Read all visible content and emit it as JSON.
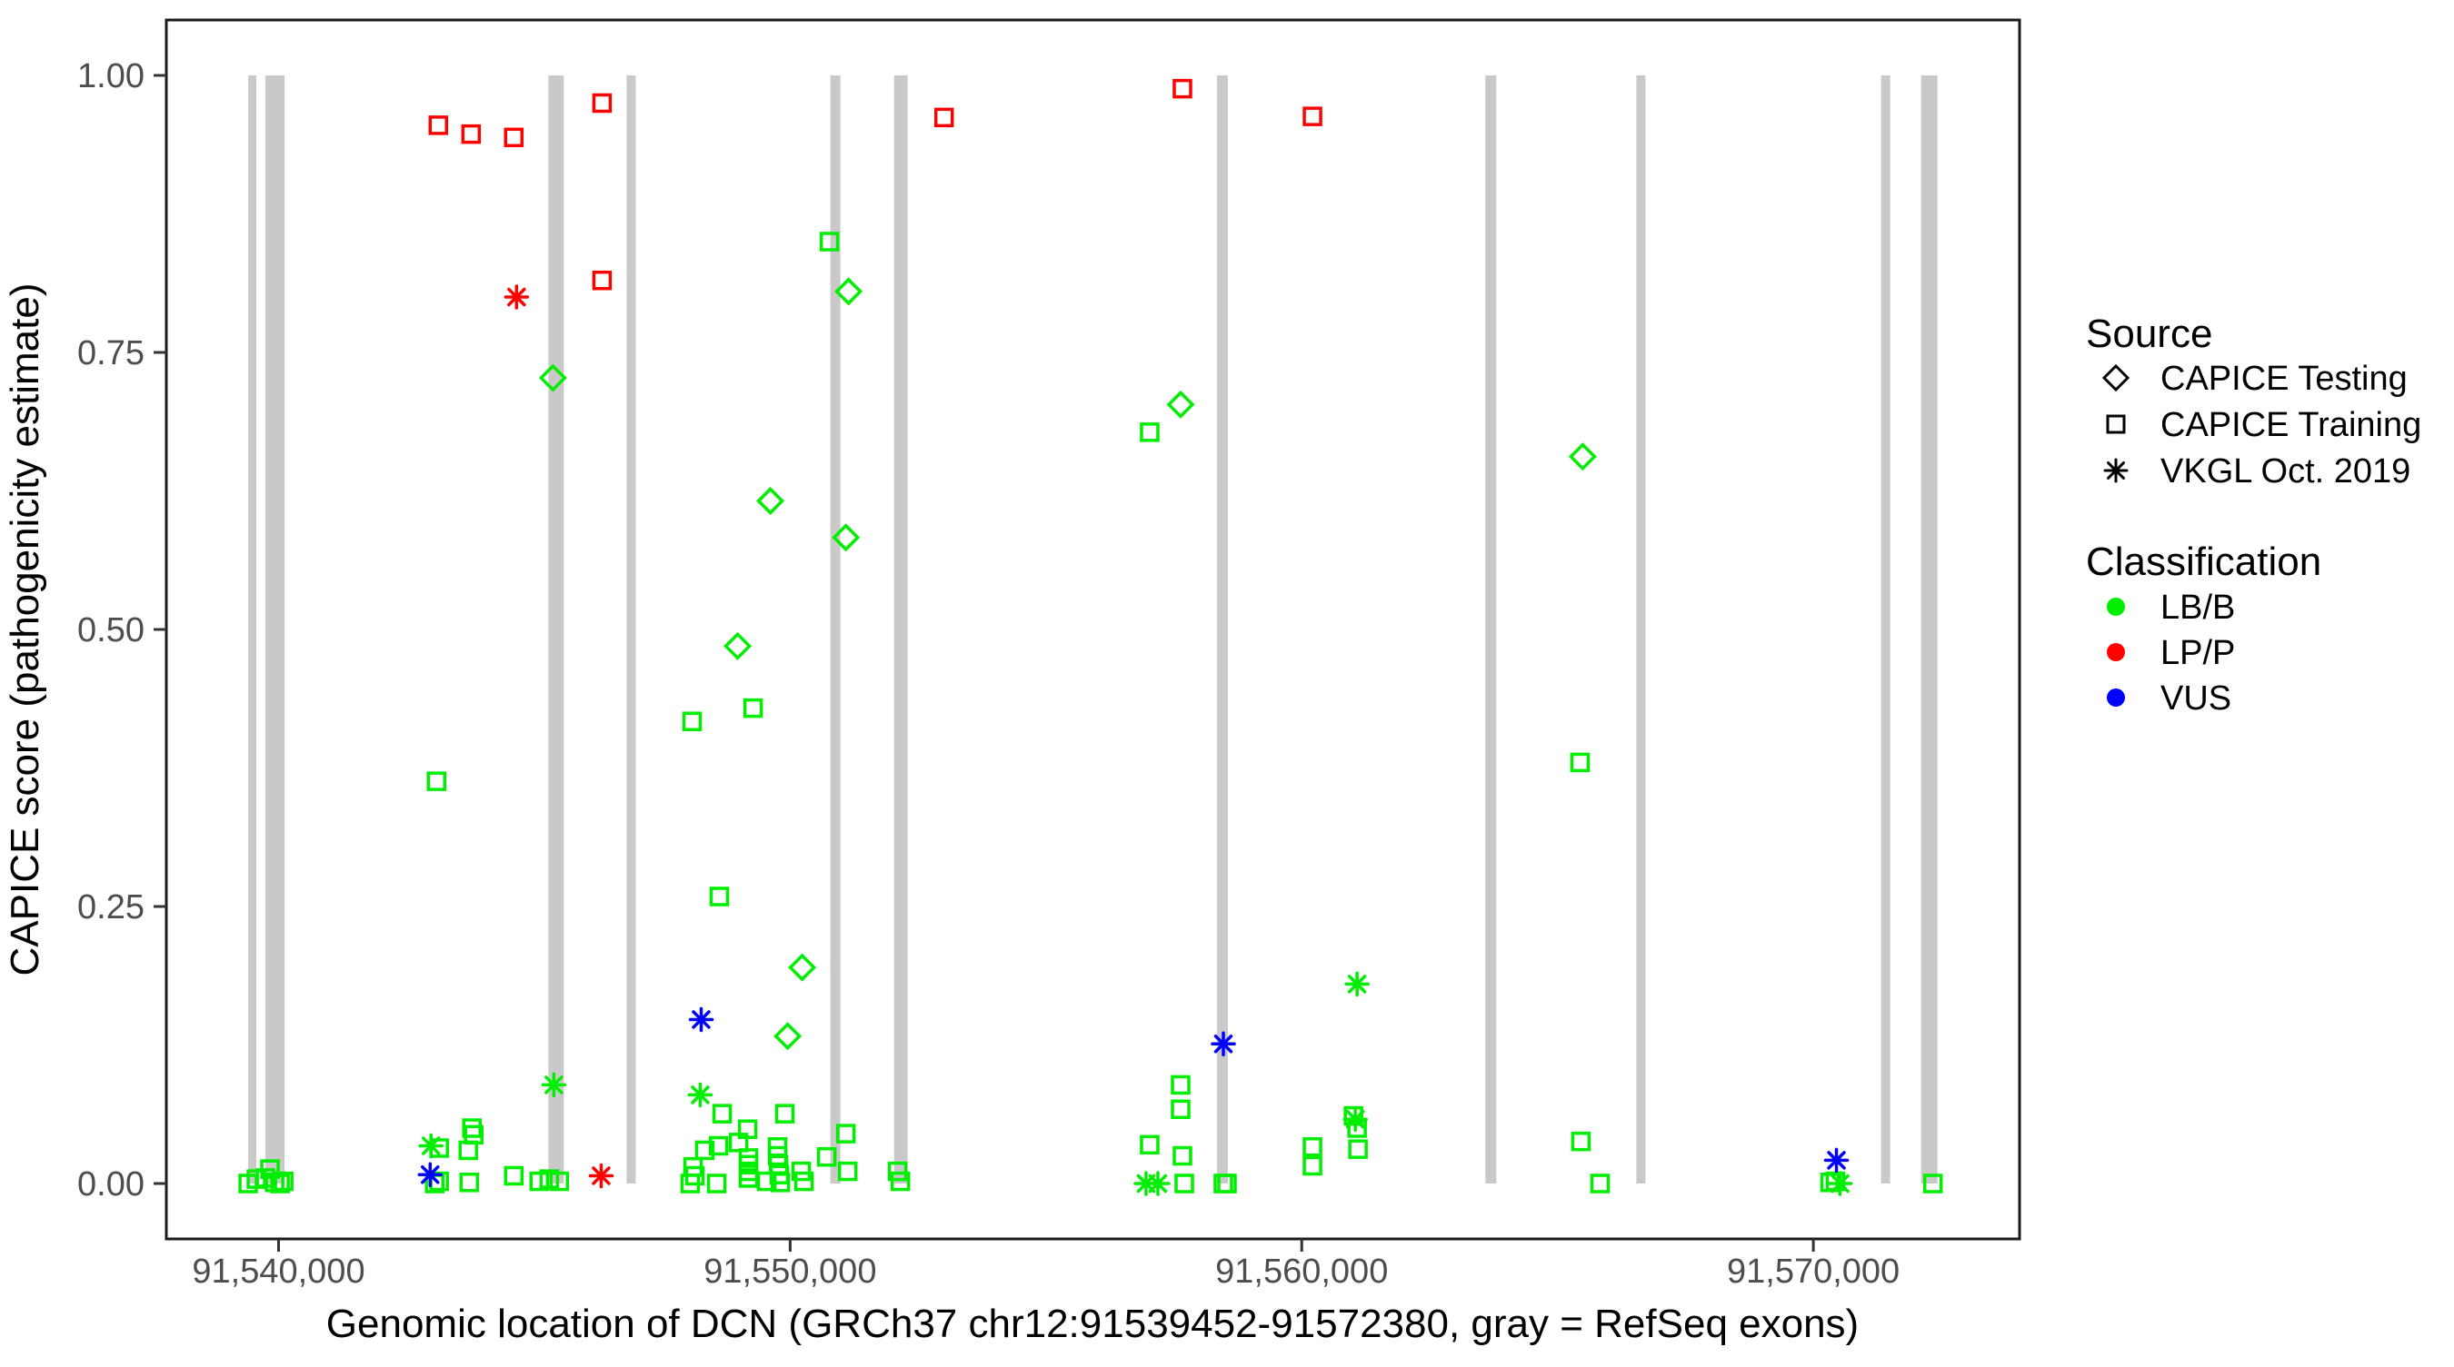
{
  "labels": {
    "x_title": "Genomic location of DCN (GRCh37 chr12:91539452-91572380, gray = RefSeq exons)",
    "y_title": "CAPICE score (pathogenicity estimate)"
  },
  "colors": {
    "lbb": "#00EE00",
    "lpp": "#FF0000",
    "vus": "#0000FF",
    "exon": "#C9C9C9",
    "frame": "#1a1a1a",
    "tick": "#333333",
    "tick_text": "#4d4d4d"
  },
  "legend": {
    "source": {
      "title": "Source",
      "items": [
        {
          "label": "CAPICE Testing",
          "shape": "diamond"
        },
        {
          "label": "CAPICE Training",
          "shape": "square"
        },
        {
          "label": "VKGL Oct. 2019",
          "shape": "asterisk"
        }
      ]
    },
    "classification": {
      "title": "Classification",
      "items": [
        {
          "label": "LB/B",
          "color": "#00EE00"
        },
        {
          "label": "LP/P",
          "color": "#FF0000"
        },
        {
          "label": "VUS",
          "color": "#0000FF"
        }
      ]
    }
  },
  "chart_data": {
    "type": "scatter",
    "title": "",
    "xlabel": "Genomic location of DCN (GRCh37 chr12:91539452-91572380, gray = RefSeq exons)",
    "ylabel": "CAPICE score (pathogenicity estimate)",
    "x_domain": [
      91537806,
      91574031
    ],
    "y_domain": [
      -0.05,
      1.05
    ],
    "grid": false,
    "legend_position": "right",
    "x_ticks": [
      {
        "pos": 91540000,
        "label": "91,540,000"
      },
      {
        "pos": 91550000,
        "label": "91,550,000"
      },
      {
        "pos": 91560000,
        "label": "91,560,000"
      },
      {
        "pos": 91570000,
        "label": "91,570,000"
      }
    ],
    "y_ticks": [
      {
        "val": 0.0,
        "label": "0.00"
      },
      {
        "val": 0.25,
        "label": "0.25"
      },
      {
        "val": 0.5,
        "label": "0.50"
      },
      {
        "val": 0.75,
        "label": "0.75"
      },
      {
        "val": 1.0,
        "label": "1.00"
      }
    ],
    "refseq_exons": [
      {
        "start": 91539406,
        "end": 91539566
      },
      {
        "start": 91539744,
        "end": 91540117
      },
      {
        "start": 91545274,
        "end": 91545576
      },
      {
        "start": 91546803,
        "end": 91546981
      },
      {
        "start": 91550786,
        "end": 91550982
      },
      {
        "start": 91552031,
        "end": 91552297
      },
      {
        "start": 91558343,
        "end": 91558556
      },
      {
        "start": 91563589,
        "end": 91563803
      },
      {
        "start": 91566541,
        "end": 91566718
      },
      {
        "start": 91571324,
        "end": 91571502
      },
      {
        "start": 91572106,
        "end": 91572426
      }
    ],
    "series": [
      {
        "name": "CAPICE Testing / LB/B",
        "source": "CAPICE Testing",
        "classification": "LB/B",
        "shape": "diamond",
        "color": "#00EE00",
        "points": [
          [
            91545363,
            0.727
          ],
          [
            91549613,
            0.616
          ],
          [
            91551141,
            0.805
          ],
          [
            91551089,
            0.583
          ],
          [
            91548973,
            0.485
          ],
          [
            91550235,
            0.195
          ],
          [
            91549951,
            0.133
          ],
          [
            91557633,
            0.703
          ],
          [
            91565492,
            0.656
          ]
        ]
      },
      {
        "name": "CAPICE Training / LP/P",
        "source": "CAPICE Training",
        "classification": "LP/P",
        "shape": "square",
        "color": "#FF0000",
        "points": [
          [
            91543123,
            0.955
          ],
          [
            91543763,
            0.947
          ],
          [
            91544598,
            0.944
          ],
          [
            91546323,
            0.975
          ],
          [
            91546323,
            0.815
          ],
          [
            91553008,
            0.962
          ],
          [
            91557668,
            0.988
          ],
          [
            91560210,
            0.963
          ]
        ]
      },
      {
        "name": "VKGL Oct. 2019 / LP/P",
        "source": "VKGL Oct. 2019",
        "classification": "LP/P",
        "shape": "asterisk",
        "color": "#FF0000",
        "points": [
          [
            91544652,
            0.8
          ],
          [
            91546306,
            0.007
          ]
        ]
      },
      {
        "name": "CAPICE Training / LB/B",
        "source": "CAPICE Training",
        "classification": "LB/B",
        "shape": "square",
        "color": "#00EE00",
        "points": [
          [
            91550768,
            0.85
          ],
          [
            91549275,
            0.429
          ],
          [
            91548084,
            0.417
          ],
          [
            91543087,
            0.363
          ],
          [
            91548617,
            0.259
          ],
          [
            91557028,
            0.678
          ],
          [
            91565439,
            0.38
          ],
          [
            91539406,
            0.0
          ],
          [
            91539566,
            0.004
          ],
          [
            91539744,
            0.005
          ],
          [
            91539833,
            0.013
          ],
          [
            91539922,
            0.001
          ],
          [
            91540029,
            0.0
          ],
          [
            91540100,
            0.002
          ],
          [
            91543140,
            0.032
          ],
          [
            91543780,
            0.05
          ],
          [
            91543815,
            0.044
          ],
          [
            91543709,
            0.03
          ],
          [
            91543140,
            0.002
          ],
          [
            91543051,
            0.0
          ],
          [
            91543727,
            0.001
          ],
          [
            91544598,
            0.007
          ],
          [
            91545096,
            0.002
          ],
          [
            91545292,
            0.004
          ],
          [
            91545487,
            0.002
          ],
          [
            91548101,
            0.015
          ],
          [
            91548137,
            0.007
          ],
          [
            91548048,
            0.0
          ],
          [
            91548332,
            0.03
          ],
          [
            91548600,
            0.034
          ],
          [
            91548564,
            0.0
          ],
          [
            91548670,
            0.063
          ],
          [
            91548991,
            0.037
          ],
          [
            91549168,
            0.049
          ],
          [
            91549186,
            0.023
          ],
          [
            91549186,
            0.017
          ],
          [
            91549186,
            0.011
          ],
          [
            91549186,
            0.005
          ],
          [
            91549541,
            0.002
          ],
          [
            91549897,
            0.063
          ],
          [
            91549755,
            0.033
          ],
          [
            91549755,
            0.025
          ],
          [
            91549773,
            0.017
          ],
          [
            91549790,
            0.008
          ],
          [
            91549808,
            0.001
          ],
          [
            91550217,
            0.011
          ],
          [
            91550270,
            0.002
          ],
          [
            91551089,
            0.045
          ],
          [
            91550715,
            0.024
          ],
          [
            91551124,
            0.011
          ],
          [
            91552101,
            0.011
          ],
          [
            91552154,
            0.002
          ],
          [
            91557633,
            0.089
          ],
          [
            91557633,
            0.067
          ],
          [
            91557028,
            0.035
          ],
          [
            91557668,
            0.025
          ],
          [
            91557704,
            0.0
          ],
          [
            91558468,
            0.0
          ],
          [
            91558539,
            0.0
          ],
          [
            91560210,
            0.033
          ],
          [
            91560210,
            0.016
          ],
          [
            91561011,
            0.061
          ],
          [
            91561082,
            0.05
          ],
          [
            91561100,
            0.031
          ],
          [
            91565457,
            0.038
          ],
          [
            91565830,
            0.0
          ],
          [
            91570328,
            0.001
          ],
          [
            91570434,
            0.002
          ],
          [
            91572337,
            0.0
          ]
        ]
      },
      {
        "name": "VKGL Oct. 2019 / LB/B",
        "source": "VKGL Oct. 2019",
        "classification": "LB/B",
        "shape": "asterisk",
        "color": "#00EE00",
        "points": [
          [
            91545381,
            0.089
          ],
          [
            91548243,
            0.08
          ],
          [
            91542980,
            0.034
          ],
          [
            91561082,
            0.18
          ],
          [
            91556957,
            0.0
          ],
          [
            91557188,
            0.0
          ],
          [
            91561047,
            0.058
          ],
          [
            91570523,
            0.0
          ]
        ]
      },
      {
        "name": "VKGL Oct. 2019 / VUS",
        "source": "VKGL Oct. 2019",
        "classification": "VUS",
        "shape": "asterisk",
        "color": "#0000FF",
        "points": [
          [
            91542963,
            0.008
          ],
          [
            91548261,
            0.148
          ],
          [
            91558468,
            0.126
          ],
          [
            91570452,
            0.021
          ]
        ]
      }
    ]
  },
  "layout_note": "gray vertical bars span score 0 to 1 and mark RefSeq exon locations"
}
